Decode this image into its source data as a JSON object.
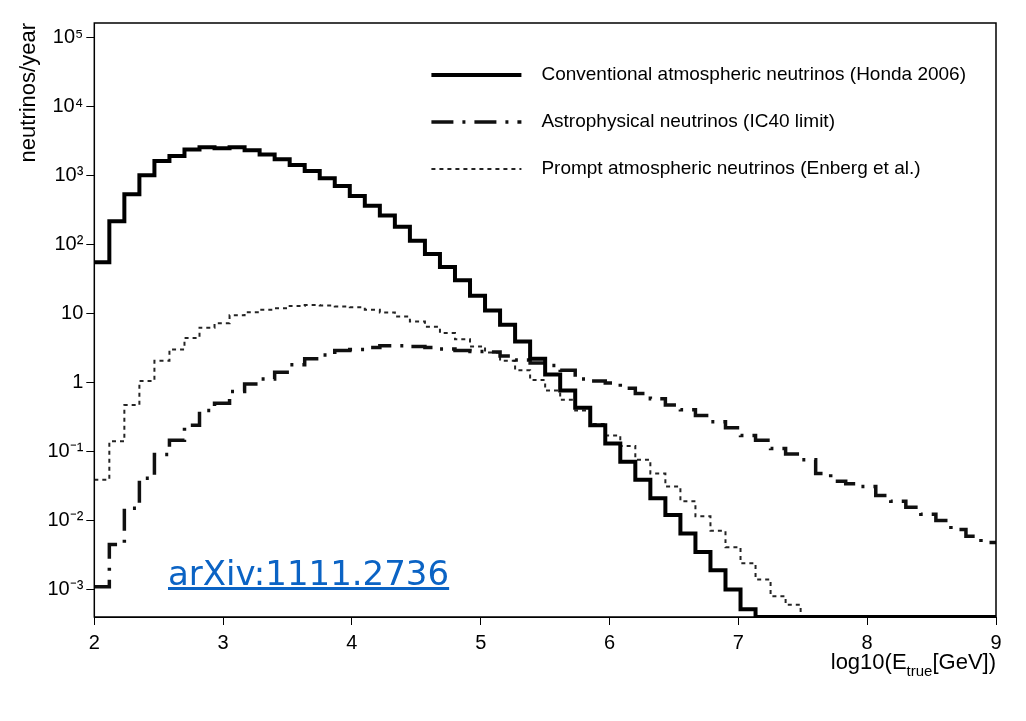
{
  "chart_data": {
    "type": "histogram",
    "xlabel": "log10(E$_{true}$[GeV])",
    "ylabel": "neutrinos/year",
    "bins": [
      2,
      2.1167,
      2.2333,
      2.35,
      2.4667,
      2.5833,
      2.7,
      2.8167,
      2.9333,
      3.05,
      3.1667,
      3.2833,
      3.4,
      3.5167,
      3.6333,
      3.75,
      3.8667,
      3.9833,
      4.1,
      4.2167,
      4.3333,
      4.45,
      4.5667,
      4.6833,
      4.8,
      4.9167,
      5.0333,
      5.15,
      5.2667,
      5.3833,
      5.5,
      5.6167,
      5.7333,
      5.85,
      5.9667,
      6.0833,
      6.2,
      6.3167,
      6.4333,
      6.55,
      6.6667,
      6.7833,
      6.9,
      7.0167,
      7.1333,
      7.25,
      7.3667,
      7.4833,
      7.6,
      7.7167,
      7.8333,
      7.95,
      8.0667,
      8.1833,
      8.3,
      8.4167,
      8.5333,
      8.65,
      8.7667,
      8.8833,
      9
    ],
    "series": [
      {
        "name": "Conventional atmospheric neutrinos (Honda 2006)",
        "color": "#000000",
        "line_style": "solid",
        "values": [
          55,
          215,
          530,
          1000,
          1600,
          1900,
          2350,
          2550,
          2450,
          2550,
          2300,
          2000,
          1700,
          1400,
          1150,
          900,
          700,
          500,
          360,
          260,
          180,
          112,
          72,
          47,
          30,
          18,
          11,
          6.8,
          3.9,
          2.2,
          1.3,
          0.76,
          0.43,
          0.24,
          0.13,
          0.071,
          0.039,
          0.021,
          0.012,
          0.0065,
          0.0035,
          0.0019,
          0.001,
          0.00052,
          null,
          null,
          null,
          null,
          null,
          null,
          null,
          null,
          null,
          null,
          null,
          null,
          null,
          null,
          null,
          null
        ]
      },
      {
        "name": "Astrophysical neutrinos (IC40 limit)",
        "color": "#101010",
        "line_style": "dashed",
        "values": [
          0.0011,
          0.0045,
          0.015,
          0.041,
          0.09,
          0.145,
          0.24,
          0.39,
          0.5,
          0.74,
          0.95,
          1.12,
          1.4,
          1.8,
          2.2,
          2.5,
          2.9,
          3,
          3.2,
          3.4,
          3.4,
          3.3,
          3.2,
          3.05,
          2.9,
          2.8,
          2.75,
          2.4,
          2.1,
          1.9,
          1.75,
          1.5,
          1.12,
          1.05,
          0.98,
          0.82,
          0.69,
          0.58,
          0.47,
          0.4,
          0.33,
          0.27,
          0.22,
          0.17,
          0.145,
          0.11,
          0.092,
          0.076,
          0.048,
          0.037,
          0.034,
          0.031,
          0.023,
          0.019,
          0.0155,
          0.0123,
          0.01,
          0.0074,
          0.0059,
          0.0048
        ]
      },
      {
        "name": "Prompt atmospheric neutrinos (Enberg et al.)",
        "color": "#242424",
        "line_style": "dotted",
        "values": [
          0.039,
          0.14,
          0.47,
          1.05,
          2.05,
          3,
          4.4,
          6.2,
          7.2,
          9.4,
          10.4,
          11.3,
          11.8,
          12.8,
          13.2,
          13,
          12.6,
          12.2,
          11.3,
          10.3,
          9,
          7.6,
          6.4,
          5.2,
          4.2,
          3.3,
          2.7,
          2.05,
          1.5,
          1.08,
          0.76,
          0.56,
          0.39,
          0.25,
          0.17,
          0.12,
          0.076,
          0.048,
          0.031,
          0.019,
          0.0115,
          0.0071,
          0.0041,
          0.0024,
          0.0014,
          0.0008,
          0.0006,
          null,
          null,
          null,
          null,
          null,
          null,
          null,
          null,
          null,
          null,
          null,
          null,
          null
        ]
      }
    ],
    "log": "y",
    "xlim": [
      2,
      9
    ],
    "xticks": [
      2,
      3,
      4,
      5,
      6,
      7,
      8,
      9
    ],
    "ylim": [
      0.0004,
      160000
    ],
    "yticks": [
      {
        "value": 0.001,
        "label": "10⁻³"
      },
      {
        "value": 0.01,
        "label": "10⁻²"
      },
      {
        "value": 0.1,
        "label": "10⁻¹"
      },
      {
        "value": 1,
        "label": "1"
      },
      {
        "value": 10,
        "label": "10"
      },
      {
        "value": 100,
        "label": "10²"
      },
      {
        "value": 1000,
        "label": "10³"
      },
      {
        "value": 10000,
        "label": "10⁴"
      },
      {
        "value": 100000,
        "label": "10⁵"
      }
    ],
    "grid": false,
    "legend": "top right",
    "annotations": [
      "arXiv:1111.2736"
    ]
  }
}
